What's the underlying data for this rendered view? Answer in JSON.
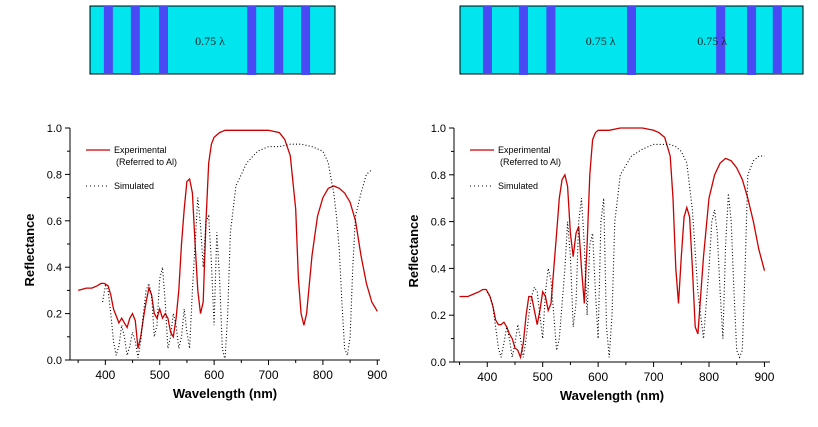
{
  "structures": [
    {
      "layers": [
        0.075,
        0.185,
        0.3,
        0.66,
        0.77,
        0.88
      ],
      "spacer_labels": [
        "0.75 λ"
      ]
    },
    {
      "layers": [
        0.08,
        0.185,
        0.265,
        0.5,
        0.76,
        0.85,
        0.925
      ],
      "spacer_labels": [
        "0.75 λ",
        "0.75 λ"
      ]
    }
  ],
  "colors": {
    "substrate": "#00e5ee",
    "layer": "#4a4af4",
    "experimental": "#cc0000",
    "simulated": "#000000"
  },
  "chart_data": [
    {
      "type": "line",
      "xlabel": "Wavelength (nm)",
      "ylabel": "Reflectance",
      "xlim": [
        335,
        905
      ],
      "ylim": [
        0,
        1.0
      ],
      "xticks": [
        400,
        500,
        600,
        700,
        800,
        900
      ],
      "yticks": [
        "0.0",
        "0.2",
        "0.4",
        "0.6",
        "0.8",
        "1.0"
      ],
      "legend_position": "top-left",
      "series": [
        {
          "name": "Experimental",
          "name_line2": "(Referred to Al)",
          "style": "solid",
          "x": [
            350,
            365,
            375,
            385,
            392,
            398,
            405,
            410,
            415,
            420,
            425,
            430,
            435,
            440,
            445,
            450,
            455,
            460,
            465,
            470,
            475,
            480,
            485,
            490,
            495,
            500,
            505,
            510,
            515,
            520,
            525,
            530,
            535,
            540,
            545,
            550,
            555,
            560,
            565,
            570,
            575,
            580,
            585,
            590,
            595,
            600,
            610,
            620,
            640,
            660,
            680,
            700,
            720,
            730,
            740,
            750,
            755,
            760,
            765,
            770,
            780,
            790,
            800,
            810,
            820,
            830,
            840,
            850,
            860,
            870,
            880,
            890,
            900
          ],
          "y": [
            0.3,
            0.31,
            0.31,
            0.32,
            0.33,
            0.33,
            0.32,
            0.28,
            0.22,
            0.19,
            0.16,
            0.18,
            0.16,
            0.14,
            0.18,
            0.2,
            0.17,
            0.05,
            0.1,
            0.18,
            0.25,
            0.31,
            0.28,
            0.2,
            0.18,
            0.22,
            0.18,
            0.2,
            0.18,
            0.12,
            0.1,
            0.18,
            0.3,
            0.5,
            0.65,
            0.77,
            0.78,
            0.72,
            0.5,
            0.3,
            0.2,
            0.25,
            0.6,
            0.85,
            0.93,
            0.96,
            0.98,
            0.99,
            0.99,
            0.99,
            0.99,
            0.99,
            0.98,
            0.95,
            0.88,
            0.65,
            0.35,
            0.2,
            0.15,
            0.2,
            0.45,
            0.62,
            0.7,
            0.74,
            0.75,
            0.74,
            0.72,
            0.68,
            0.6,
            0.45,
            0.33,
            0.25,
            0.21
          ]
        },
        {
          "name": "Simulated",
          "style": "dotted",
          "x": [
            395,
            400,
            405,
            410,
            415,
            420,
            425,
            430,
            435,
            440,
            445,
            450,
            455,
            460,
            465,
            470,
            475,
            480,
            485,
            490,
            495,
            500,
            505,
            510,
            515,
            520,
            525,
            530,
            535,
            540,
            545,
            550,
            555,
            560,
            565,
            570,
            575,
            580,
            585,
            590,
            595,
            600,
            605,
            610,
            615,
            620,
            625,
            630,
            640,
            660,
            680,
            700,
            720,
            740,
            760,
            780,
            790,
            800,
            810,
            815,
            820,
            825,
            830,
            835,
            840,
            845,
            850,
            855,
            860,
            870,
            880,
            890
          ],
          "y": [
            0.25,
            0.32,
            0.3,
            0.2,
            0.08,
            0.02,
            0.06,
            0.15,
            0.1,
            0.02,
            0.06,
            0.12,
            0.08,
            0.01,
            0.08,
            0.2,
            0.3,
            0.33,
            0.28,
            0.1,
            0.15,
            0.35,
            0.4,
            0.25,
            0.05,
            0.1,
            0.2,
            0.15,
            0.05,
            0.1,
            0.22,
            0.12,
            0.05,
            0.3,
            0.5,
            0.7,
            0.58,
            0.4,
            0.6,
            0.62,
            0.42,
            0.15,
            0.55,
            0.35,
            0.05,
            0.0,
            0.2,
            0.55,
            0.75,
            0.85,
            0.9,
            0.92,
            0.92,
            0.93,
            0.93,
            0.92,
            0.91,
            0.9,
            0.85,
            0.78,
            0.72,
            0.62,
            0.48,
            0.25,
            0.05,
            0.02,
            0.1,
            0.4,
            0.62,
            0.72,
            0.8,
            0.82
          ]
        }
      ]
    },
    {
      "type": "line",
      "xlabel": "Wavelength (nm)",
      "ylabel": "Reflectance",
      "xlim": [
        340,
        910
      ],
      "ylim": [
        0,
        1.0
      ],
      "xticks": [
        400,
        500,
        600,
        700,
        800,
        900
      ],
      "yticks": [
        "0.0",
        "0.2",
        "0.4",
        "0.6",
        "0.8",
        "1.0"
      ],
      "legend_position": "top-left",
      "series": [
        {
          "name": "Experimental",
          "name_line2": "(Referred to Al)",
          "style": "solid",
          "x": [
            350,
            365,
            375,
            385,
            392,
            398,
            405,
            410,
            415,
            420,
            425,
            430,
            435,
            440,
            445,
            450,
            455,
            460,
            465,
            470,
            475,
            480,
            485,
            490,
            495,
            500,
            505,
            510,
            515,
            520,
            525,
            530,
            535,
            540,
            545,
            550,
            555,
            560,
            565,
            570,
            575,
            580,
            585,
            590,
            595,
            600,
            610,
            620,
            640,
            660,
            680,
            700,
            710,
            720,
            730,
            735,
            740,
            745,
            750,
            755,
            760,
            765,
            770,
            775,
            780,
            790,
            800,
            810,
            820,
            830,
            840,
            850,
            860,
            870,
            880,
            890,
            900
          ],
          "y": [
            0.28,
            0.28,
            0.29,
            0.3,
            0.31,
            0.31,
            0.28,
            0.24,
            0.18,
            0.16,
            0.16,
            0.17,
            0.15,
            0.12,
            0.1,
            0.06,
            0.05,
            0.02,
            0.08,
            0.2,
            0.28,
            0.28,
            0.22,
            0.16,
            0.22,
            0.3,
            0.28,
            0.22,
            0.25,
            0.4,
            0.55,
            0.7,
            0.78,
            0.8,
            0.75,
            0.55,
            0.45,
            0.55,
            0.58,
            0.4,
            0.25,
            0.5,
            0.8,
            0.95,
            0.98,
            0.99,
            0.99,
            0.99,
            1.0,
            1.0,
            1.0,
            0.99,
            0.98,
            0.96,
            0.88,
            0.7,
            0.4,
            0.25,
            0.45,
            0.62,
            0.66,
            0.62,
            0.4,
            0.15,
            0.12,
            0.45,
            0.7,
            0.8,
            0.85,
            0.87,
            0.86,
            0.83,
            0.78,
            0.7,
            0.6,
            0.48,
            0.39
          ]
        },
        {
          "name": "Simulated",
          "style": "dotted",
          "x": [
            400,
            405,
            410,
            415,
            420,
            425,
            430,
            435,
            440,
            445,
            450,
            455,
            460,
            465,
            470,
            475,
            480,
            485,
            490,
            495,
            500,
            505,
            510,
            515,
            520,
            525,
            530,
            535,
            540,
            545,
            550,
            555,
            560,
            565,
            570,
            575,
            580,
            585,
            590,
            595,
            600,
            605,
            610,
            615,
            620,
            625,
            630,
            640,
            660,
            680,
            700,
            720,
            730,
            740,
            750,
            760,
            770,
            780,
            790,
            800,
            805,
            810,
            815,
            820,
            825,
            830,
            835,
            840,
            845,
            850,
            855,
            860,
            865,
            870,
            880,
            890,
            900
          ],
          "y": [
            0.3,
            0.28,
            0.24,
            0.15,
            0.06,
            0.02,
            0.08,
            0.15,
            0.1,
            0.02,
            0.08,
            0.16,
            0.1,
            0.02,
            0.1,
            0.2,
            0.28,
            0.32,
            0.3,
            0.2,
            0.1,
            0.3,
            0.4,
            0.35,
            0.2,
            0.05,
            0.1,
            0.25,
            0.4,
            0.6,
            0.45,
            0.15,
            0.25,
            0.6,
            0.7,
            0.5,
            0.2,
            0.5,
            0.55,
            0.3,
            0.1,
            0.6,
            0.7,
            0.15,
            0.02,
            0.2,
            0.6,
            0.8,
            0.88,
            0.91,
            0.93,
            0.93,
            0.93,
            0.92,
            0.9,
            0.85,
            0.65,
            0.3,
            0.1,
            0.4,
            0.6,
            0.65,
            0.55,
            0.3,
            0.1,
            0.5,
            0.72,
            0.6,
            0.3,
            0.05,
            0.02,
            0.05,
            0.4,
            0.8,
            0.86,
            0.88,
            0.88
          ]
        }
      ]
    }
  ]
}
